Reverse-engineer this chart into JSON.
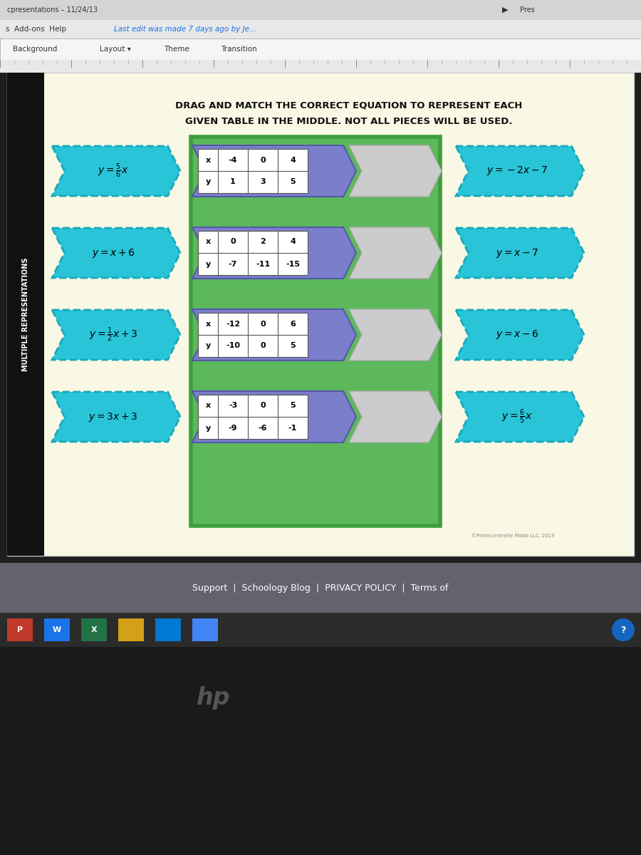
{
  "title_text1": "DRAG AND MATCH THE CORRECT EQUATION TO REPRESENT EACH",
  "title_text2": "GIVEN TABLE IN THE MIDDLE. NOT ALL PIECES WILL BE USED.",
  "title_fontsize": 9.5,
  "left_eq_latex": [
    "$y=\\frac{5}{6}x$",
    "$y=x+6$",
    "$y=\\frac{1}{2}x+3$",
    "$y=3x+3$"
  ],
  "right_eq_latex": [
    "$y=-2x-7$",
    "$y=x-7$",
    "$y=x-6$",
    "$y=\\frac{6}{5}x$"
  ],
  "tables": [
    {
      "x": [
        "-4",
        "0",
        "4"
      ],
      "y": [
        "1",
        "3",
        "5"
      ]
    },
    {
      "x": [
        "0",
        "2",
        "4"
      ],
      "y": [
        "-7",
        "-11",
        "-15"
      ]
    },
    {
      "x": [
        "-12",
        "0",
        "6"
      ],
      "y": [
        "-10",
        "0",
        "5"
      ]
    },
    {
      "x": [
        "-3",
        "0",
        "5"
      ],
      "y": [
        "-9",
        "-6",
        "-1"
      ]
    }
  ],
  "cyan": "#29c4d8",
  "cyan_dark": "#1aa8bb",
  "purple": "#7b7fcb",
  "purple_dark": "#5558a8",
  "green": "#5db85c",
  "green_dark": "#3d9e3c",
  "sidebar_bg": "#111111",
  "sidebar_text": "MULTIPLE REPRESENTATIONS",
  "footer_text": "Support  |  Schoology Blog  |  PRIVACY POLICY  |  Terms of",
  "header_bg": "#e2e2e2",
  "toolbar_bg": "#f2f2f2",
  "footer_bg": "#636370",
  "taskbar_bg": "#2b2b2b",
  "slide_bg": "#f9f8e4",
  "dark_bg": "#1e1e1e"
}
